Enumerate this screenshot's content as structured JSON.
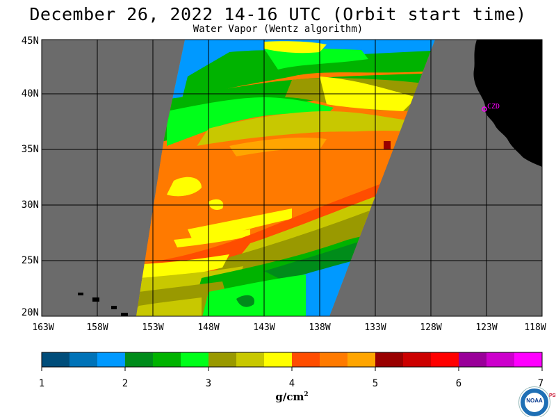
{
  "header": {
    "title": "December 26, 2022  14-16 UTC  (Orbit start time)",
    "subtitle": "Water Vapor (Wentz algorithm)"
  },
  "map": {
    "lat_labels": [
      "45N",
      "40N",
      "35N",
      "30N",
      "25N",
      "20N"
    ],
    "lon_labels": [
      "163W",
      "158W",
      "153W",
      "148W",
      "143W",
      "138W",
      "133W",
      "128W",
      "123W",
      "118W"
    ],
    "station_label": "CZD",
    "colors": {
      "no_data": "#6b6b6b",
      "land": "#000000",
      "grid": "#000000",
      "station": "#ff00ff"
    }
  },
  "colorbar": {
    "tick_labels": [
      "1",
      "2",
      "3",
      "4",
      "5",
      "6",
      "7"
    ],
    "units_base": "g/cm",
    "units_exp": "2",
    "colors": [
      "#004d7a",
      "#0073b8",
      "#0099ff",
      "#008c1a",
      "#00b300",
      "#00ff1a",
      "#999900",
      "#c8c800",
      "#ffff00",
      "#ff4d00",
      "#ff7a00",
      "#ffa500",
      "#990000",
      "#cc0000",
      "#ff0000",
      "#990099",
      "#cc00cc",
      "#ff00ff"
    ]
  },
  "logo": {
    "text": "NOAA",
    "side_text": "PSL"
  }
}
